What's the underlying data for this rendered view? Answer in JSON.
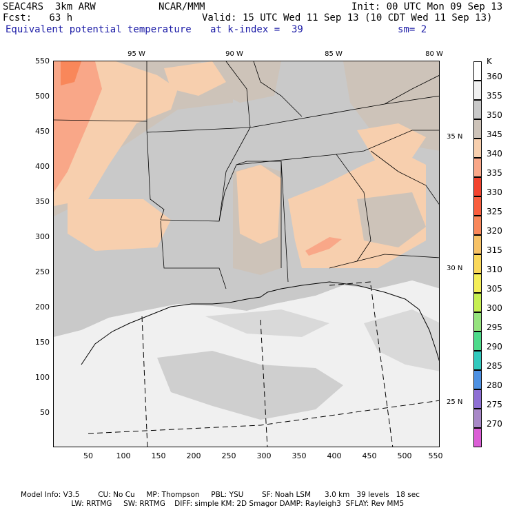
{
  "header": {
    "model": "SEAC4RS  3km ARW",
    "org": "NCAR/MMM",
    "init": "Init: 00 UTC Mon 09 Sep 13",
    "fcst": "Fcst:   63 h",
    "valid": "Valid: 15 UTC Wed 11 Sep 13 (10 CDT Wed 11 Sep 13)",
    "field": "Equivalent potential temperature",
    "level": "at k-index =  39",
    "smooth": "sm= 2"
  },
  "axes": {
    "x_ticks": [
      "50",
      "100",
      "150",
      "200",
      "250",
      "300",
      "350",
      "400",
      "450",
      "500",
      "550"
    ],
    "y_ticks": [
      "550",
      "500",
      "450",
      "400",
      "350",
      "300",
      "250",
      "200",
      "150",
      "100",
      "50"
    ],
    "lon_labels": [
      "95 W",
      "90 W",
      "85 W",
      "80 W"
    ],
    "lat_labels": [
      "35 N",
      "30 N",
      "25 N"
    ]
  },
  "colorbar": {
    "unit": "K",
    "levels": [
      {
        "label": "360",
        "color": "#ffffff"
      },
      {
        "label": "355",
        "color": "#f0f0f0"
      },
      {
        "label": "350",
        "color": "#c8c8c8"
      },
      {
        "label": "345",
        "color": "#cdc3b9"
      },
      {
        "label": "340",
        "color": "#f7cfae"
      },
      {
        "label": "335",
        "color": "#f9a788"
      },
      {
        "label": "330",
        "color": "#f2432e"
      },
      {
        "label": "325",
        "color": "#f95e3e"
      },
      {
        "label": "320",
        "color": "#f9875a"
      },
      {
        "label": "315",
        "color": "#f7c266"
      },
      {
        "label": "310",
        "color": "#fad85a"
      },
      {
        "label": "305",
        "color": "#f4ee58"
      },
      {
        "label": "300",
        "color": "#c6ef52"
      },
      {
        "label": "295",
        "color": "#95e37e"
      },
      {
        "label": "290",
        "color": "#4dda8a"
      },
      {
        "label": "285",
        "color": "#31c9be"
      },
      {
        "label": "280",
        "color": "#4d90e2"
      },
      {
        "label": "275",
        "color": "#8e6fd4"
      },
      {
        "label": "270",
        "color": "#a888c7"
      },
      {
        "label": "",
        "color": "#db5ed6"
      }
    ]
  },
  "footer": {
    "line1": "Model Info: V3.5        CU: No Cu     MP: Thompson     PBL: YSU        SF: Noah LSM      3.0 km   39 levels   18 sec",
    "line2": "                      LW: RRTMG     SW: RRTMG    DIFF: simple KM: 2D Smagor DAMP: Rayleigh3  SFLAY: Rev MM5"
  }
}
